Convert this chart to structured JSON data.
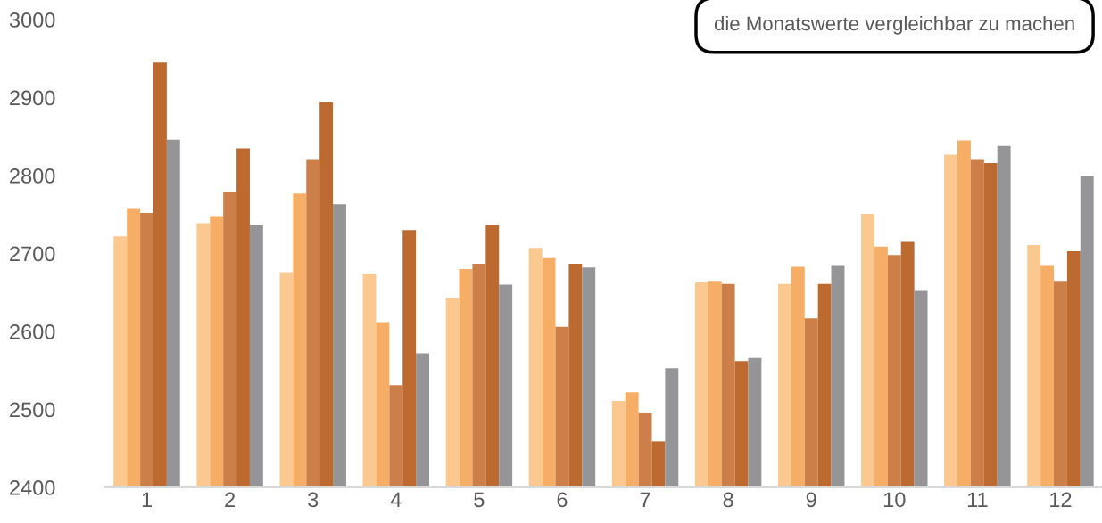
{
  "chart_data": {
    "type": "bar",
    "categories": [
      "1",
      "2",
      "3",
      "4",
      "5",
      "6",
      "7",
      "8",
      "9",
      "10",
      "11",
      "12"
    ],
    "series": [
      {
        "color": "#fbc990",
        "values": [
          2722,
          2739,
          2676,
          2674,
          2643,
          2707,
          2511,
          2663,
          2661,
          2751,
          2827,
          2711
        ]
      },
      {
        "color": "#f6ae66",
        "values": [
          2757,
          2748,
          2777,
          2612,
          2680,
          2694,
          2522,
          2665,
          2683,
          2709,
          2845,
          2685
        ]
      },
      {
        "color": "#cd7f4a",
        "values": [
          2752,
          2779,
          2820,
          2531,
          2687,
          2606,
          2496,
          2661,
          2617,
          2698,
          2820,
          2665
        ]
      },
      {
        "color": "#bd6a30",
        "values": [
          2945,
          2835,
          2894,
          2730,
          2737,
          2687,
          2459,
          2562,
          2661,
          2715,
          2816,
          2703
        ]
      },
      {
        "color": "#959597",
        "values": [
          2846,
          2737,
          2763,
          2572,
          2660,
          2682,
          2553,
          2566,
          2685,
          2652,
          2838,
          2799
        ]
      }
    ],
    "ylim": [
      2400,
      3000
    ],
    "yticks": [
      2400,
      2500,
      2600,
      2700,
      2800,
      2900,
      3000
    ],
    "grid": false,
    "legend": false,
    "annotations": [
      "die Monatswerte vergleichbar zu machen"
    ]
  }
}
